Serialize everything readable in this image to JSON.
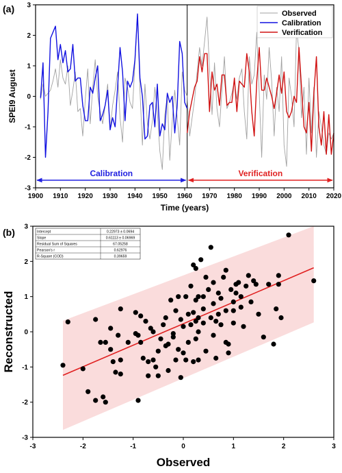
{
  "chart_data": [
    {
      "panel": "(a)",
      "type": "line",
      "xlabel": "Time (years)",
      "ylabel": "SPEI9 August",
      "xlim": [
        1900,
        2020
      ],
      "ylim": [
        -3,
        3
      ],
      "xticks": [
        "1900",
        "1910",
        "1920",
        "1930",
        "1940",
        "1950",
        "1960",
        "1970",
        "1980",
        "1990",
        "2000",
        "2010",
        "2020"
      ],
      "yticks": [
        "-3",
        "-2",
        "-1",
        "0",
        "1",
        "2",
        "3"
      ],
      "split_year": 1961,
      "legend": {
        "position": "top-right",
        "entries": [
          "Observed",
          "Calibration",
          "Verification"
        ]
      },
      "annotations": [
        {
          "text": "Calibration",
          "x_range": [
            1900,
            1961
          ],
          "y": -2.75,
          "color": "#2020e0"
        },
        {
          "text": "Verification",
          "x_range": [
            1961,
            2020
          ],
          "y": -2.75,
          "color": "#e02020"
        }
      ],
      "series": [
        {
          "name": "Observed",
          "color": "#a0a0a0",
          "x_start": 1902,
          "values": [
            -0.1,
            0.4,
            0.0,
            0.1,
            0.2,
            0.5,
            0.9,
            0.3,
            1.2,
            0.6,
            0.4,
            1.0,
            -0.3,
            0.2,
            0.8,
            -0.5,
            -0.4,
            -1.3,
            -0.1,
            0.9,
            -0.9,
            0.3,
            1.2,
            0.0,
            -0.5,
            -0.9,
            -0.3,
            0.4,
            -1.1,
            -0.3,
            0.2,
            0.8,
            -0.7,
            -1.5,
            0.6,
            0.3,
            -0.2,
            -0.4,
            1.1,
            2.7,
            0.2,
            -1.6,
            0.4,
            -0.9,
            -1.4,
            -0.8,
            0.3,
            -0.5,
            -1.8,
            -2.4,
            -0.6,
            0.0,
            -2.1,
            -0.8,
            0.2,
            -0.7,
            -1.6,
            0.8,
            0.2,
            0.0,
            -1.3,
            -0.7,
            -0.1,
            0.8,
            1.6,
            1.0,
            1.8,
            2.6,
            0.9,
            -0.6,
            1.1,
            -0.4,
            -1.0,
            0.2,
            1.3,
            -0.4,
            -0.2,
            0.1,
            0.5,
            -0.1,
            0.6,
            0.9,
            -0.5,
            -1.4,
            1.3,
            0.4,
            0.7,
            2.1,
            0.1,
            -2.0,
            0.7,
            -0.1,
            1.6,
            0.5,
            -1.3,
            0.3,
            -0.5,
            1.3,
            -1.6,
            -2.3,
            0.6,
            0.0,
            -1.0,
            2.2,
            1.5,
            -0.7,
            0.3,
            -1.9,
            0.6,
            -1.2,
            0.3,
            -2.0,
            -0.5,
            -1.0,
            -1.6,
            -1.9,
            -1.2,
            -1.4,
            -1.2
          ]
        },
        {
          "name": "Calibration",
          "color": "#1010e0",
          "x_start": 1902,
          "values": [
            -0.05,
            1.1,
            -2.0,
            -0.5,
            1.9,
            2.1,
            2.3,
            1.2,
            1.7,
            1.1,
            1.5,
            0.8,
            0.9,
            1.7,
            0.5,
            0.6,
            0.6,
            -0.3,
            -0.8,
            -0.8,
            0.3,
            0.1,
            0.6,
            1.0,
            -0.8,
            -0.6,
            -0.3,
            0.2,
            -1.1,
            -0.7,
            -1.0,
            0.3,
            1.6,
            0.8,
            -0.8,
            0.5,
            0.3,
            0.5,
            1.2,
            2.7,
            0.6,
            0.0,
            -1.4,
            -1.3,
            -0.3,
            -0.2,
            -1.0,
            0.4,
            -1.3,
            -0.9,
            -1.1,
            0.1,
            -0.2,
            0.0,
            -1.2,
            -0.3,
            1.8,
            1.4,
            -0.2,
            -0.4
          ]
        },
        {
          "name": "Verification",
          "color": "#d01010",
          "x_start": 1961,
          "values": [
            -1.2,
            -0.5,
            -0.1,
            0.3,
            0.5,
            1.3,
            0.8,
            1.4,
            1.4,
            -0.5,
            0.8,
            0.2,
            0.4,
            -0.3,
            0.7,
            0.7,
            -0.3,
            -0.2,
            -0.2,
            0.6,
            -0.5,
            0.5,
            0.4,
            0.3,
            1.4,
            0.8,
            -0.5,
            -1.3,
            0.5,
            1.6,
            0.2,
            0.2,
            0.6,
            0.3,
            0.0,
            -0.4,
            0.1,
            0.7,
            0.1,
            0.8,
            -0.5,
            -0.7,
            -0.5,
            0.0,
            -0.2,
            1.6,
            0.3,
            -1.0,
            -1.2,
            -0.2,
            -1.8,
            0.1,
            1.3,
            -1.0,
            -1.6,
            -0.5,
            -1.9,
            -0.6,
            -1.9,
            -1.2
          ]
        }
      ]
    },
    {
      "panel": "(b)",
      "type": "scatter",
      "xlabel": "Observed",
      "ylabel": "Reconstructed",
      "xlim": [
        -3,
        3
      ],
      "ylim": [
        -3,
        3
      ],
      "xticks": [
        "-3",
        "-2",
        "-1",
        "0",
        "1",
        "2",
        "3"
      ],
      "yticks": [
        "-3",
        "-2",
        "-1",
        "0",
        "1",
        "2",
        "3"
      ],
      "fit_line": {
        "intercept": 0.22973,
        "slope": 0.61113,
        "x_range": [
          -2.4,
          2.6
        ],
        "color": "#e02020"
      },
      "prediction_band": {
        "color": "#fadcdc",
        "half_width": 1.55,
        "x_range": [
          -2.4,
          2.6
        ]
      },
      "stats_table": [
        [
          "Intercept",
          "0.22973 ± 0.0694"
        ],
        [
          "Slope",
          "0.61113 ± 0.06969"
        ],
        [
          "Residual Sum of Squares",
          "67.05258"
        ],
        [
          "Pearson's r",
          "0.62976"
        ],
        [
          "R-Square (COD)",
          "0.39659"
        ]
      ],
      "points": [
        [
          -2.4,
          -0.95
        ],
        [
          -2.3,
          0.28
        ],
        [
          -2.0,
          -1.05
        ],
        [
          -1.9,
          -1.7
        ],
        [
          -1.75,
          0.35
        ],
        [
          -1.75,
          -1.95
        ],
        [
          -1.65,
          -0.3
        ],
        [
          -1.6,
          -1.85
        ],
        [
          -1.55,
          -2.0
        ],
        [
          -1.55,
          -0.3
        ],
        [
          -1.45,
          0.1
        ],
        [
          -1.45,
          -0.5
        ],
        [
          -1.4,
          -0.85
        ],
        [
          -1.35,
          -1.15
        ],
        [
          -1.3,
          -0.1
        ],
        [
          -1.25,
          -0.8
        ],
        [
          -1.25,
          -1.2
        ],
        [
          -1.25,
          0.65
        ],
        [
          -1.1,
          -0.3
        ],
        [
          -0.95,
          0.55
        ],
        [
          -0.95,
          -0.05
        ],
        [
          -0.9,
          -0.1
        ],
        [
          -0.9,
          -1.95
        ],
        [
          -0.85,
          -0.3
        ],
        [
          -0.8,
          -0.75
        ],
        [
          -0.75,
          0.3
        ],
        [
          -0.7,
          -0.85
        ],
        [
          -0.7,
          -1.25
        ],
        [
          -0.65,
          0.1
        ],
        [
          -0.6,
          -0.8
        ],
        [
          -0.55,
          -1.0
        ],
        [
          -0.5,
          -0.55
        ],
        [
          -0.5,
          -1.25
        ],
        [
          -0.45,
          -0.2
        ],
        [
          -0.4,
          0.2
        ],
        [
          -0.35,
          -0.4
        ],
        [
          -0.35,
          0.4
        ],
        [
          -0.3,
          -1.1
        ],
        [
          -0.3,
          -0.35
        ],
        [
          -0.25,
          0.9
        ],
        [
          -0.2,
          -0.05
        ],
        [
          -0.2,
          -0.15
        ],
        [
          -0.15,
          -0.8
        ],
        [
          -0.15,
          0.6
        ],
        [
          -0.1,
          1.0
        ],
        [
          -0.1,
          -0.5
        ],
        [
          -0.05,
          0.35
        ],
        [
          -0.05,
          -1.3
        ],
        [
          0.0,
          0.15
        ],
        [
          0.0,
          -0.6
        ],
        [
          0.05,
          -0.8
        ],
        [
          0.05,
          1.0
        ],
        [
          0.1,
          0.5
        ],
        [
          0.1,
          -0.3
        ],
        [
          0.15,
          0.2
        ],
        [
          0.15,
          1.3
        ],
        [
          0.2,
          1.9
        ],
        [
          0.2,
          0.55
        ],
        [
          0.2,
          -0.85
        ],
        [
          0.25,
          1.8
        ],
        [
          0.25,
          0.9
        ],
        [
          0.25,
          0.3
        ],
        [
          0.25,
          -0.2
        ],
        [
          0.3,
          0.4
        ],
        [
          0.3,
          0.0
        ],
        [
          0.3,
          -0.8
        ],
        [
          0.35,
          2.05
        ],
        [
          0.4,
          1.0
        ],
        [
          0.4,
          0.65
        ],
        [
          0.4,
          0.25
        ],
        [
          0.45,
          -0.55
        ],
        [
          0.5,
          1.2
        ],
        [
          0.55,
          2.4
        ],
        [
          0.55,
          0.4
        ],
        [
          0.6,
          1.4
        ],
        [
          0.6,
          0.8
        ],
        [
          0.6,
          -0.1
        ],
        [
          0.65,
          0.3
        ],
        [
          0.65,
          -0.75
        ],
        [
          0.7,
          1.1
        ],
        [
          0.7,
          0.5
        ],
        [
          0.75,
          0.2
        ],
        [
          0.8,
          1.55
        ],
        [
          0.85,
          1.75
        ],
        [
          0.85,
          0.6
        ],
        [
          0.85,
          -0.3
        ],
        [
          0.9,
          -0.35
        ],
        [
          0.9,
          -0.6
        ],
        [
          0.95,
          1.2
        ],
        [
          1.0,
          0.85
        ],
        [
          1.0,
          0.6
        ],
        [
          1.0,
          0.25
        ],
        [
          1.05,
          1.1
        ],
        [
          1.05,
          1.35
        ],
        [
          1.1,
          1.4
        ],
        [
          1.15,
          0.7
        ],
        [
          1.2,
          0.15
        ],
        [
          1.25,
          1.3
        ],
        [
          1.3,
          1.6
        ],
        [
          1.35,
          0.85
        ],
        [
          1.4,
          1.45
        ],
        [
          1.45,
          1.35
        ],
        [
          1.5,
          0.5
        ],
        [
          1.6,
          -0.15
        ],
        [
          1.7,
          1.35
        ],
        [
          1.8,
          -0.35
        ],
        [
          1.85,
          0.65
        ],
        [
          1.9,
          1.6
        ],
        [
          1.9,
          1.35
        ],
        [
          1.95,
          0.4
        ],
        [
          2.1,
          2.75
        ],
        [
          2.6,
          1.45
        ],
        [
          -0.85,
          0.45
        ],
        [
          0.45,
          1.55
        ],
        [
          0.3,
          1.0
        ],
        [
          -0.6,
          0.0
        ],
        [
          1.15,
          1.0
        ],
        [
          0.75,
          0.95
        ]
      ]
    }
  ]
}
